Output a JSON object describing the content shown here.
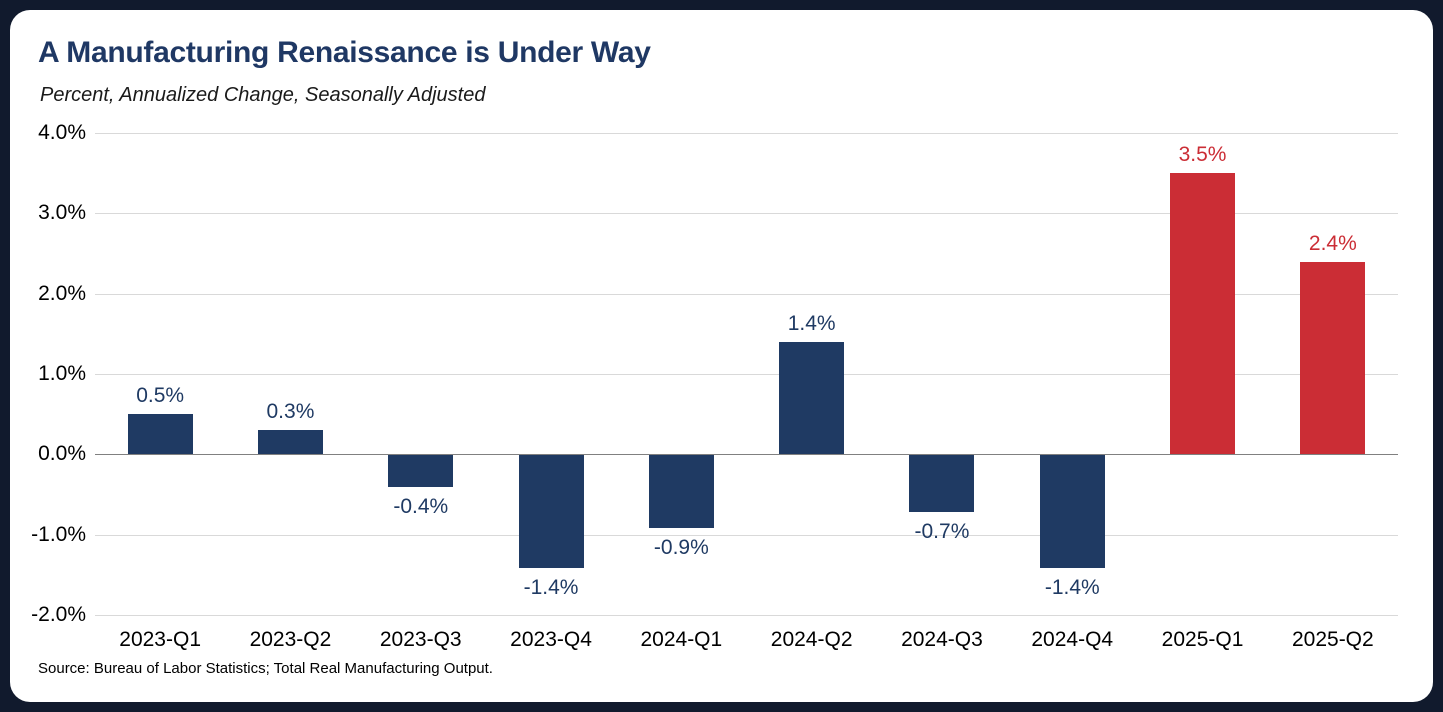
{
  "header": {
    "title": "A Manufacturing Renaissance is Under Way",
    "subtitle": "Percent, Annualized Change, Seasonally Adjusted"
  },
  "footer": {
    "source": "Source: Bureau of Labor Statistics; Total Real Manufacturing Output."
  },
  "colors": {
    "navy": "#1F3A63",
    "red": "#CB2D35",
    "title": "#1F3864",
    "grid": "#D9D9D9",
    "zero_line": "#808080",
    "frame": "#111A2D",
    "card": "#FFFFFF"
  },
  "chart_data": {
    "type": "bar",
    "title": "A Manufacturing Renaissance is Under Way",
    "subtitle": "Percent, Annualized Change, Seasonally Adjusted",
    "categories": [
      "2023-Q1",
      "2023-Q2",
      "2023-Q3",
      "2023-Q4",
      "2024-Q1",
      "2024-Q2",
      "2024-Q3",
      "2024-Q4",
      "2025-Q1",
      "2025-Q2"
    ],
    "values": [
      0.5,
      0.3,
      -0.4,
      -1.4,
      -0.9,
      1.4,
      -0.7,
      -1.4,
      3.5,
      2.4
    ],
    "value_labels": [
      "0.5%",
      "0.3%",
      "-0.4%",
      "-1.4%",
      "-0.9%",
      "1.4%",
      "-0.7%",
      "-1.4%",
      "3.5%",
      "2.4%"
    ],
    "bar_colors": [
      "navy",
      "navy",
      "navy",
      "navy",
      "navy",
      "navy",
      "navy",
      "navy",
      "red",
      "red"
    ],
    "xlabel": "",
    "ylabel": "",
    "ylim": [
      -2,
      4
    ],
    "ytick_values": [
      4,
      3,
      2,
      1,
      0,
      -1,
      -2
    ],
    "ytick_labels": [
      "4.0%",
      "3.0%",
      "2.0%",
      "1.0%",
      "0.0%",
      "-1.0%",
      "-2.0%"
    ],
    "grid": true,
    "legend": false
  }
}
